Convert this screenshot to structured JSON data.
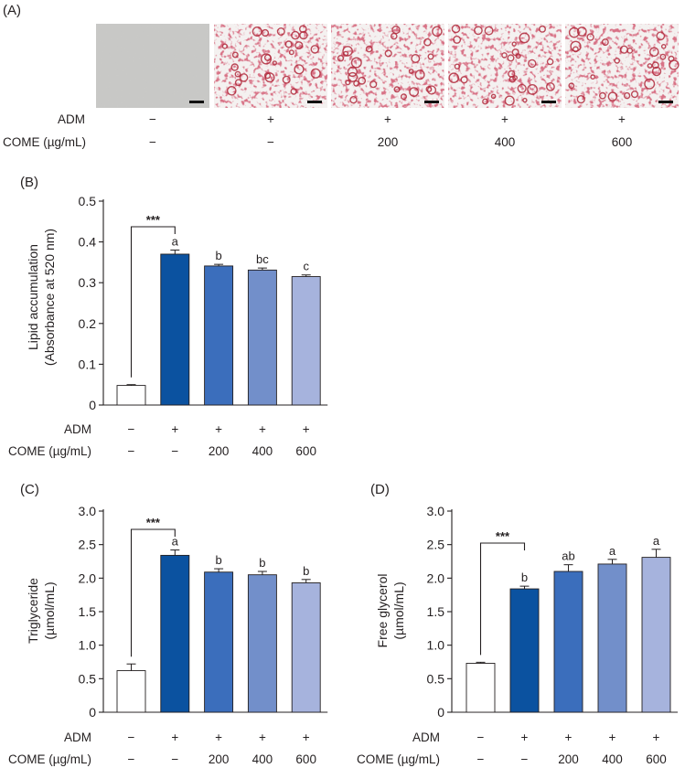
{
  "panel_a": {
    "label": "(A)",
    "row_labels": [
      "ADM",
      "COME (µg/mL)"
    ],
    "adm": [
      "−",
      "+",
      "+",
      "+",
      "+"
    ],
    "come": [
      "−",
      "−",
      "200",
      "400",
      "600"
    ]
  },
  "colors": {
    "bars": [
      "#ffffff",
      "#0b52a0",
      "#3b6ebc",
      "#728fca",
      "#a6b3dd"
    ],
    "stain": "#b02a3c",
    "blank_micrograph": "#c9c9c7"
  },
  "chart_data": [
    {
      "id": "B",
      "label": "(B)",
      "type": "bar",
      "ylabel_lines": [
        "Lipid accumulation",
        "(Absorbance at 520 nm)"
      ],
      "ylim": [
        0,
        0.5
      ],
      "yticks": [
        "0",
        "0.1",
        "0.2",
        "0.3",
        "0.4",
        "0.5"
      ],
      "values": [
        0.048,
        0.37,
        0.341,
        0.331,
        0.315
      ],
      "errors": [
        0.002,
        0.01,
        0.004,
        0.005,
        0.004
      ],
      "letters": [
        "",
        "a",
        "b",
        "bc",
        "c"
      ],
      "significance": "***",
      "adm": [
        "−",
        "+",
        "+",
        "+",
        "+"
      ],
      "come": [
        "−",
        "−",
        "200",
        "400",
        "600"
      ]
    },
    {
      "id": "C",
      "label": "(C)",
      "type": "bar",
      "ylabel_lines": [
        "Triglyceride",
        "(µmol/mL)"
      ],
      "ylim": [
        0,
        3.0
      ],
      "yticks": [
        "0",
        "0.5",
        "1.0",
        "1.5",
        "2.0",
        "2.5",
        "3.0"
      ],
      "values": [
        0.62,
        2.34,
        2.09,
        2.05,
        1.93
      ],
      "errors": [
        0.1,
        0.08,
        0.05,
        0.05,
        0.05
      ],
      "letters": [
        "",
        "a",
        "b",
        "b",
        "b"
      ],
      "significance": "***",
      "adm": [
        "−",
        "+",
        "+",
        "+",
        "+"
      ],
      "come": [
        "−",
        "−",
        "200",
        "400",
        "600"
      ]
    },
    {
      "id": "D",
      "label": "(D)",
      "type": "bar",
      "ylabel_lines": [
        "Free glycerol",
        "(µmol/mL)"
      ],
      "ylim": [
        0,
        3.0
      ],
      "yticks": [
        "0",
        "0.5",
        "1.0",
        "1.5",
        "2.0",
        "2.5",
        "3.0"
      ],
      "values": [
        0.73,
        1.84,
        2.1,
        2.21,
        2.31
      ],
      "errors": [
        0.015,
        0.04,
        0.1,
        0.07,
        0.12
      ],
      "letters": [
        "",
        "b",
        "ab",
        "a",
        "a"
      ],
      "significance": "***",
      "adm": [
        "−",
        "+",
        "+",
        "+",
        "+"
      ],
      "come": [
        "−",
        "−",
        "200",
        "400",
        "600"
      ]
    }
  ]
}
